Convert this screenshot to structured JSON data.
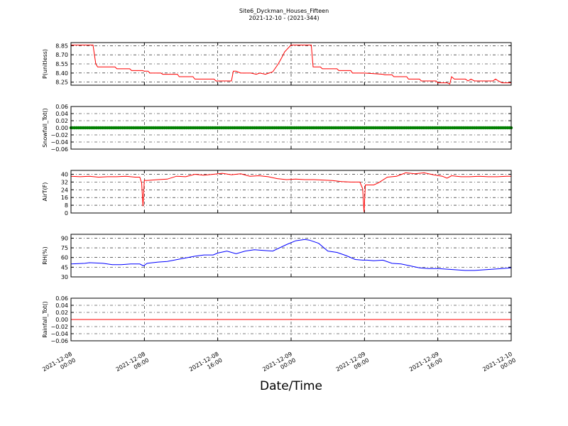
{
  "figure": {
    "title": "Site6_Dyckman_Houses_Fifteen",
    "subtitle": "2021-12-10 - (2021-344)",
    "xlabel": "Date/Time"
  },
  "chart_data": [
    {
      "type": "line",
      "ylabel": "P(unitless)",
      "xlim": [
        0,
        48
      ],
      "ylim": [
        8.2,
        8.9
      ],
      "yticks": [
        8.25,
        8.4,
        8.55,
        8.7,
        8.85
      ],
      "yticklabels": [
        "8.25",
        "8.40",
        "8.55",
        "8.70",
        "8.85"
      ],
      "grid": true,
      "series": [
        {
          "color": "#ff0000",
          "marker": "none",
          "x": [
            0,
            2.4,
            2.7,
            2.9,
            4.8,
            5.0,
            6.4,
            6.6,
            7.8,
            8.0,
            8.4,
            8.6,
            9.8,
            10.0,
            11.6,
            11.8,
            13.3,
            13.5,
            15.6,
            15.8,
            17.5,
            17.7,
            18.0,
            18.5,
            19.0,
            19.6,
            20.2,
            20.6,
            21.2,
            21.6,
            22.0,
            22.6,
            23.0,
            23.3,
            24.0,
            26.2,
            26.4,
            27.2,
            27.4,
            29.0,
            29.2,
            30.5,
            30.7,
            31.8,
            32.0,
            34.0,
            34.2,
            35.0,
            35.2,
            36.6,
            36.8,
            38.0,
            38.2,
            39.8,
            40.0,
            41.0,
            41.3,
            41.5,
            41.8,
            43.0,
            43.3,
            43.6,
            44.0,
            45.0,
            46.0,
            46.3,
            46.6,
            47.0,
            48.0
          ],
          "y": [
            8.86,
            8.86,
            8.55,
            8.5,
            8.5,
            8.47,
            8.47,
            8.44,
            8.44,
            8.43,
            8.43,
            8.4,
            8.4,
            8.38,
            8.38,
            8.34,
            8.34,
            8.3,
            8.3,
            8.27,
            8.27,
            8.43,
            8.43,
            8.4,
            8.4,
            8.4,
            8.38,
            8.4,
            8.38,
            8.4,
            8.42,
            8.55,
            8.66,
            8.75,
            8.86,
            8.86,
            8.5,
            8.5,
            8.47,
            8.47,
            8.44,
            8.44,
            8.4,
            8.4,
            8.4,
            8.38,
            8.37,
            8.37,
            8.34,
            8.34,
            8.3,
            8.3,
            8.27,
            8.27,
            8.24,
            8.24,
            8.22,
            8.34,
            8.3,
            8.3,
            8.27,
            8.3,
            8.27,
            8.27,
            8.27,
            8.3,
            8.27,
            8.24,
            8.24
          ]
        }
      ]
    },
    {
      "type": "scatter",
      "ylabel": "Snowfall_Tot()",
      "xlim": [
        0,
        48
      ],
      "ylim": [
        -0.06,
        0.06
      ],
      "yticks": [
        -0.06,
        -0.04,
        -0.02,
        0.0,
        0.02,
        0.04,
        0.06
      ],
      "yticklabels": [
        "−0.06",
        "−0.04",
        "−0.02",
        "0.00",
        "0.02",
        "0.04",
        "0.06"
      ],
      "grid": true,
      "series": [
        {
          "color": "#008000",
          "marker": "circle",
          "constant": 0.0,
          "x_start": 0,
          "x_end": 48,
          "x_step": 0.2
        }
      ]
    },
    {
      "type": "line",
      "ylabel": "AirT(F)",
      "xlim": [
        0,
        48
      ],
      "ylim": [
        0,
        44
      ],
      "yticks": [
        0,
        8,
        16,
        24,
        32,
        40
      ],
      "yticklabels": [
        "0",
        "8",
        "16",
        "24",
        "32",
        "40"
      ],
      "grid": true,
      "series": [
        {
          "color": "#ff0000",
          "marker": "none",
          "x": [
            0,
            1,
            2,
            3,
            4,
            5,
            6,
            7,
            7.5,
            7.7,
            7.85,
            8.0,
            8.2,
            9.5,
            10.5,
            11.5,
            12.5,
            13.5,
            14.5,
            15.5,
            16.5,
            17.5,
            18.5,
            19.5,
            20.5,
            21.5,
            22.5,
            23.5,
            24.5,
            25.5,
            26.5,
            27.5,
            28.5,
            29.5,
            30.5,
            31.5,
            31.8,
            31.95,
            32.1,
            32.3,
            33.0,
            33.5,
            34.5,
            35.5,
            36.5,
            37.5,
            38.5,
            39.5,
            40.5,
            41.0,
            41.5,
            42.5,
            43.5,
            44.5,
            45.5,
            46.5,
            47.5,
            48
          ],
          "y": [
            38,
            37.5,
            38,
            37,
            37.5,
            37.5,
            38,
            37,
            37,
            31,
            7,
            34,
            33.5,
            34.5,
            35,
            38,
            37.5,
            40,
            39,
            40,
            41,
            39.5,
            40.5,
            38,
            38.5,
            37.5,
            35.5,
            34.5,
            35,
            34.5,
            34.5,
            34,
            33.5,
            32.5,
            32,
            32,
            25,
            1,
            29,
            29,
            29,
            31,
            37,
            38,
            41.5,
            40.5,
            41.5,
            39.5,
            38,
            36,
            38.5,
            37.5,
            37.5,
            38,
            37.5,
            37.5,
            38,
            38
          ]
        }
      ]
    },
    {
      "type": "line",
      "ylabel": "RH(%)",
      "xlim": [
        0,
        48
      ],
      "ylim": [
        30,
        96
      ],
      "yticks": [
        30,
        45,
        60,
        75,
        90
      ],
      "yticklabels": [
        "30",
        "45",
        "60",
        "75",
        "90"
      ],
      "grid": true,
      "series": [
        {
          "color": "#0000ff",
          "marker": "none",
          "x": [
            0,
            1.5,
            2.0,
            3.5,
            4.5,
            5.5,
            6.5,
            7.5,
            7.9,
            8.3,
            9.5,
            10.5,
            12.0,
            13.5,
            14.5,
            15.5,
            16.0,
            17.0,
            18.0,
            19.0,
            20.0,
            21.0,
            22.0,
            23.5,
            24.5,
            25.5,
            26.0,
            27.0,
            28.0,
            29.0,
            30.0,
            31.0,
            31.8,
            32.0,
            32.3,
            33.0,
            34.0,
            35.0,
            36.0,
            37.0,
            38.0,
            39.0,
            40.0,
            41.0,
            42.0,
            43.0,
            44.0,
            45.0,
            46.0,
            47.0,
            48.0
          ],
          "y": [
            50,
            51,
            52,
            51,
            49,
            49,
            50,
            50,
            47,
            51,
            53,
            54,
            58,
            62,
            64,
            64,
            67,
            70,
            66,
            70,
            72,
            71,
            70,
            80,
            86,
            88,
            87,
            82,
            70,
            68,
            63,
            57,
            56,
            56,
            56,
            55,
            56,
            51,
            50,
            47,
            44,
            43,
            43,
            42,
            41,
            40,
            40,
            41,
            42,
            43,
            44
          ]
        }
      ]
    },
    {
      "type": "line",
      "ylabel": "Rainfall_Tot()",
      "xlim": [
        0,
        48
      ],
      "ylim": [
        -0.06,
        0.06
      ],
      "yticks": [
        -0.06,
        -0.04,
        -0.02,
        0.0,
        0.02,
        0.04,
        0.06
      ],
      "yticklabels": [
        "−0.06",
        "−0.04",
        "−0.02",
        "0.00",
        "0.02",
        "0.04",
        "0.06"
      ],
      "grid": true,
      "series": [
        {
          "color": "#ff0000",
          "marker": "none",
          "x": [
            0,
            48
          ],
          "y": [
            0,
            0
          ]
        }
      ]
    }
  ],
  "x_axis": {
    "ticks": [
      0,
      8,
      16,
      24,
      32,
      40,
      48
    ],
    "ticklabels": [
      [
        "2021-12-08",
        "00:00"
      ],
      [
        "2021-12-08",
        "08:00"
      ],
      [
        "2021-12-08",
        "16:00"
      ],
      [
        "2021-12-09",
        "00:00"
      ],
      [
        "2021-12-09",
        "08:00"
      ],
      [
        "2021-12-09",
        "16:00"
      ],
      [
        "2021-12-10",
        "00:00"
      ]
    ]
  }
}
